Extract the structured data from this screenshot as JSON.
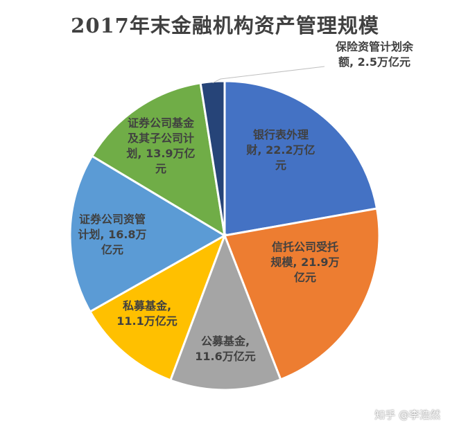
{
  "chart_data": {
    "type": "pie",
    "title": "2017年末金融机构资产管理规模",
    "unit": "万亿元",
    "categories": [
      "银行表外理财",
      "信托公司受托规模",
      "公募基金",
      "私募基金",
      "证券公司资管计划",
      "证券公司基金及其子公司计划",
      "保险资管计划余额"
    ],
    "values": [
      22.2,
      21.9,
      11.6,
      11.1,
      16.8,
      13.9,
      2.5
    ],
    "colors": [
      "#4472C4",
      "#ED7D31",
      "#A5A5A5",
      "#FFC000",
      "#5B9BD5",
      "#70AD47",
      "#264478"
    ],
    "data_labels": [
      [
        "银行表外理",
        "财, 22.2万亿",
        "元"
      ],
      [
        "信托公司受托",
        "规模, 21.9万",
        "亿元"
      ],
      [
        "公募基金,",
        "11.6万亿元"
      ],
      [
        "私募基金,",
        "11.1万亿元"
      ],
      [
        "证券公司资管",
        "计划, 16.8万",
        "亿元"
      ],
      [
        "证券公司基金",
        "及其子公司计",
        "划, 13.9万亿",
        "元"
      ],
      [
        "保险资管计划余",
        "额, 2.5万亿元"
      ]
    ],
    "legend": "none"
  },
  "watermark": "知乎 @李浩然"
}
